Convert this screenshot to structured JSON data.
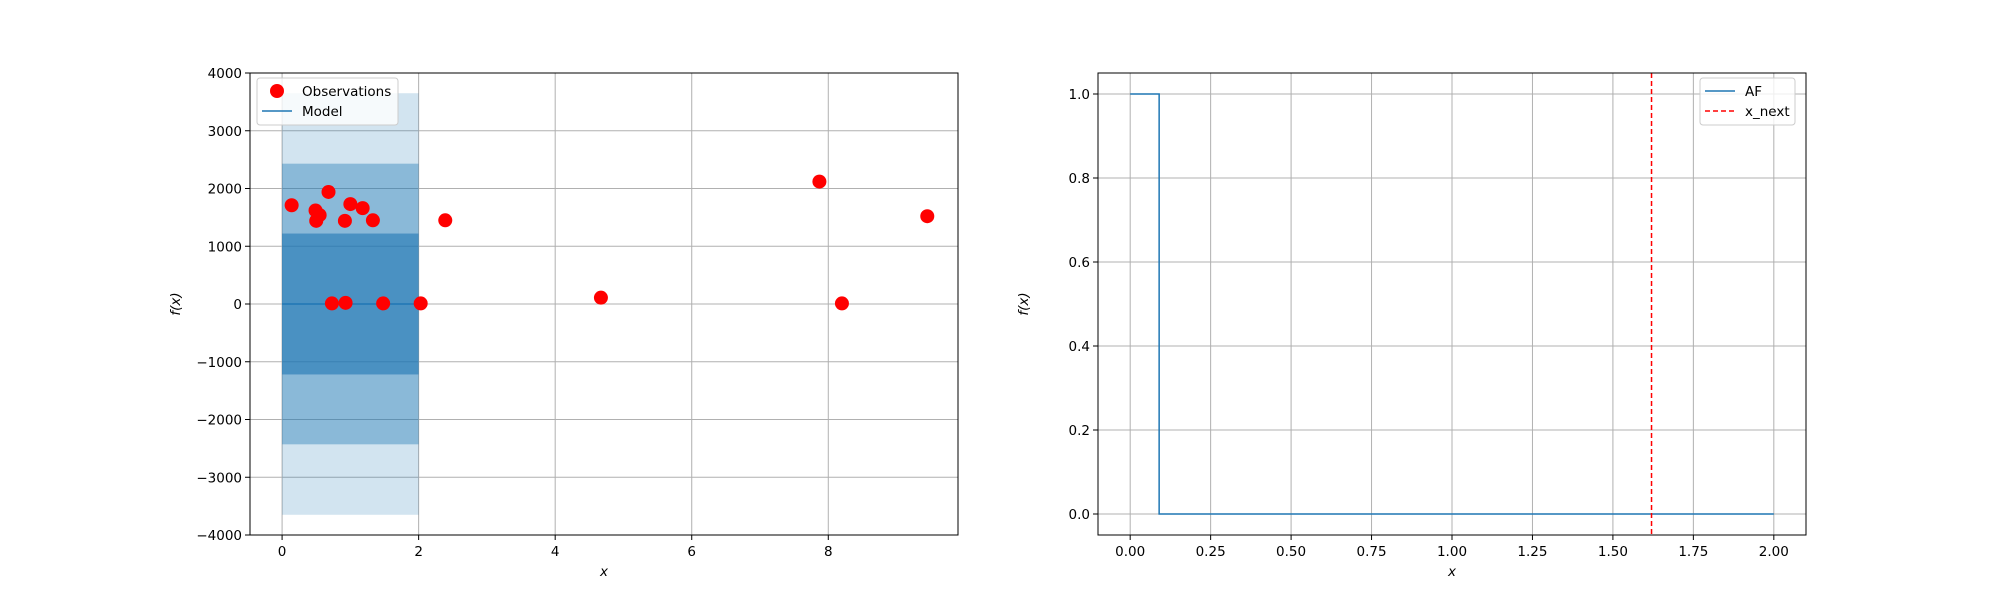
{
  "chart_data": [
    {
      "type": "scatter",
      "xlabel": "x",
      "ylabel": "f(x)",
      "xlim": [
        -0.47,
        9.9
      ],
      "ylim": [
        -4000,
        4000
      ],
      "xticks": [
        0,
        2,
        4,
        6,
        8
      ],
      "xtick_labels": [
        "0",
        "2",
        "4",
        "6",
        "8"
      ],
      "yticks": [
        -4000,
        -3000,
        -2000,
        -1000,
        0,
        1000,
        2000,
        3000,
        4000
      ],
      "ytick_labels": [
        "−4000",
        "−3000",
        "−2000",
        "−1000",
        "0",
        "1000",
        "2000",
        "3000",
        "4000"
      ],
      "grid": true,
      "legend_position": "top-left",
      "legend": [
        {
          "label": "Observations",
          "kind": "marker",
          "color": "#ff0000"
        },
        {
          "label": "Model",
          "kind": "line",
          "color": "#1f77b4"
        }
      ],
      "observations": {
        "name": "Observations",
        "color": "#ff0000",
        "x": [
          0.14,
          0.49,
          0.5,
          0.55,
          0.68,
          0.73,
          0.92,
          0.93,
          1.0,
          1.18,
          1.33,
          1.48,
          2.03,
          2.39,
          4.67,
          7.87,
          8.2,
          9.45
        ],
        "y": [
          1710,
          1620,
          1440,
          1540,
          1940,
          10,
          1440,
          20,
          1730,
          1660,
          1450,
          10,
          10,
          1450,
          110,
          2120,
          10,
          1520
        ]
      },
      "model": {
        "name": "Model",
        "color": "#1f77b4",
        "x": [
          0,
          2.0
        ],
        "mean": [
          0,
          0
        ],
        "bands": [
          {
            "lower": -3650,
            "upper": 3650,
            "opacity": 0.2
          },
          {
            "lower": -2430,
            "upper": 2430,
            "opacity": 0.4
          },
          {
            "lower": -1220,
            "upper": 1220,
            "opacity": 0.6
          }
        ]
      }
    },
    {
      "type": "line",
      "xlabel": "x",
      "ylabel": "f(x)",
      "xlim": [
        -0.1,
        2.1
      ],
      "ylim": [
        -0.05,
        1.05
      ],
      "xticks": [
        0,
        0.25,
        0.5,
        0.75,
        1.0,
        1.25,
        1.5,
        1.75,
        2.0
      ],
      "xtick_labels": [
        "0.00",
        "0.25",
        "0.50",
        "0.75",
        "1.00",
        "1.25",
        "1.50",
        "1.75",
        "2.00"
      ],
      "yticks": [
        0,
        0.2,
        0.4,
        0.6,
        0.8,
        1.0
      ],
      "ytick_labels": [
        "0.0",
        "0.2",
        "0.4",
        "0.6",
        "0.8",
        "1.0"
      ],
      "grid": true,
      "legend_position": "top-right",
      "legend": [
        {
          "label": "AF",
          "kind": "line",
          "color": "#1f77b4"
        },
        {
          "label": "x_next",
          "kind": "dashed",
          "color": "#ff0000"
        }
      ],
      "series": [
        {
          "name": "AF",
          "color": "#1f77b4",
          "x": [
            0,
            0.09,
            0.09,
            2.0
          ],
          "y": [
            1.0,
            1.0,
            0.0,
            0.0
          ]
        }
      ],
      "vline": {
        "name": "x_next",
        "x": 1.62,
        "color": "#ff0000"
      }
    }
  ]
}
